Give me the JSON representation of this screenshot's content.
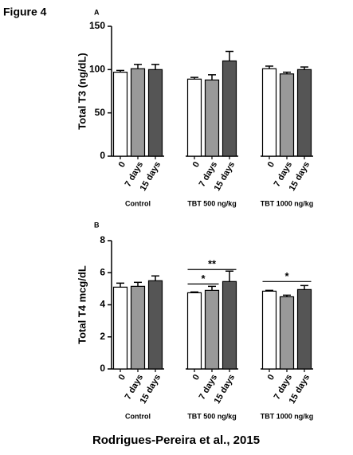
{
  "figure_label": "Figure 4",
  "caption": "Rodrigues-Pereira  et al., 2015",
  "chart_data": [
    {
      "type": "bar",
      "panel": "A",
      "ylabel": "Total T3 (ng/dL)",
      "categories": [
        "Control",
        "TBT 500 ng/kg",
        "TBT 1000 ng/kg"
      ],
      "series": [
        {
          "name": "0",
          "color": "#ffffff",
          "values": [
            97,
            89,
            101
          ],
          "errors": [
            2,
            2,
            3
          ]
        },
        {
          "name": "7 days",
          "color": "#999999",
          "values": [
            101,
            88,
            95
          ],
          "errors": [
            5,
            6,
            2
          ]
        },
        {
          "name": "15 days",
          "color": "#555555",
          "values": [
            100,
            110,
            100
          ],
          "errors": [
            6,
            11,
            3
          ]
        }
      ],
      "ylim": [
        0,
        150
      ],
      "yticks": [
        0,
        50,
        100,
        150
      ],
      "annotations": []
    },
    {
      "type": "bar",
      "panel": "B",
      "ylabel": "Total T4 mcg/dL",
      "categories": [
        "Control",
        "TBT 500 ng/kg",
        "TBT 1000 ng/kg"
      ],
      "series": [
        {
          "name": "0",
          "color": "#ffffff",
          "values": [
            5.1,
            4.75,
            4.85
          ],
          "errors": [
            0.25,
            0.05,
            0.05
          ]
        },
        {
          "name": "7 days",
          "color": "#999999",
          "values": [
            5.15,
            4.9,
            4.5
          ],
          "errors": [
            0.25,
            0.25,
            0.1
          ]
        },
        {
          "name": "15 days",
          "color": "#555555",
          "values": [
            5.5,
            5.45,
            4.95
          ],
          "errors": [
            0.3,
            0.65,
            0.25
          ]
        }
      ],
      "ylim": [
        0,
        8
      ],
      "yticks": [
        0,
        2,
        4,
        6,
        8
      ],
      "annotations": [
        {
          "text": "*",
          "category": 1,
          "from": 0,
          "to": 1,
          "y": 5.3
        },
        {
          "text": "**",
          "category": 1,
          "from": 0,
          "to": 2,
          "y": 6.2
        },
        {
          "text": "*",
          "category": 2,
          "from": 0,
          "to": 2,
          "y": 5.45
        }
      ]
    }
  ]
}
